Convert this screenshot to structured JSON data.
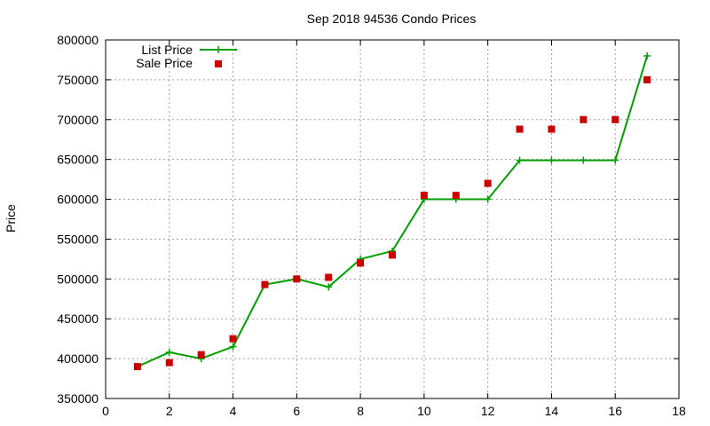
{
  "chart_data": {
    "type": "line",
    "title": "Sep 2018 94536 Condo Prices",
    "xlabel": "",
    "ylabel": "Price",
    "xlim": [
      0,
      18
    ],
    "ylim": [
      350000,
      800000
    ],
    "xticks": [
      0,
      2,
      4,
      6,
      8,
      10,
      12,
      14,
      16,
      18
    ],
    "yticks": [
      350000,
      400000,
      450000,
      500000,
      550000,
      600000,
      650000,
      700000,
      750000,
      800000
    ],
    "grid": true,
    "legend": "top-left",
    "series": [
      {
        "name": "List Price",
        "style": "line-plus",
        "color": "#00a000",
        "x": [
          1,
          2,
          3,
          4,
          5,
          6,
          7,
          8,
          9,
          10,
          11,
          12,
          13,
          14,
          15,
          16,
          17
        ],
        "y": [
          390000,
          408000,
          400000,
          415000,
          493000,
          500000,
          490000,
          525000,
          535000,
          600000,
          600000,
          600000,
          649000,
          649000,
          649000,
          649000,
          780000
        ]
      },
      {
        "name": "Sale Price",
        "style": "square-points",
        "color": "#cc0000",
        "x": [
          1,
          2,
          3,
          4,
          5,
          6,
          7,
          8,
          9,
          10,
          11,
          12,
          13,
          14,
          15,
          16,
          17
        ],
        "y": [
          390000,
          395000,
          405000,
          425000,
          493000,
          500000,
          502000,
          520000,
          530000,
          605000,
          605000,
          620000,
          688000,
          688000,
          700000,
          700000,
          750000
        ]
      }
    ]
  }
}
